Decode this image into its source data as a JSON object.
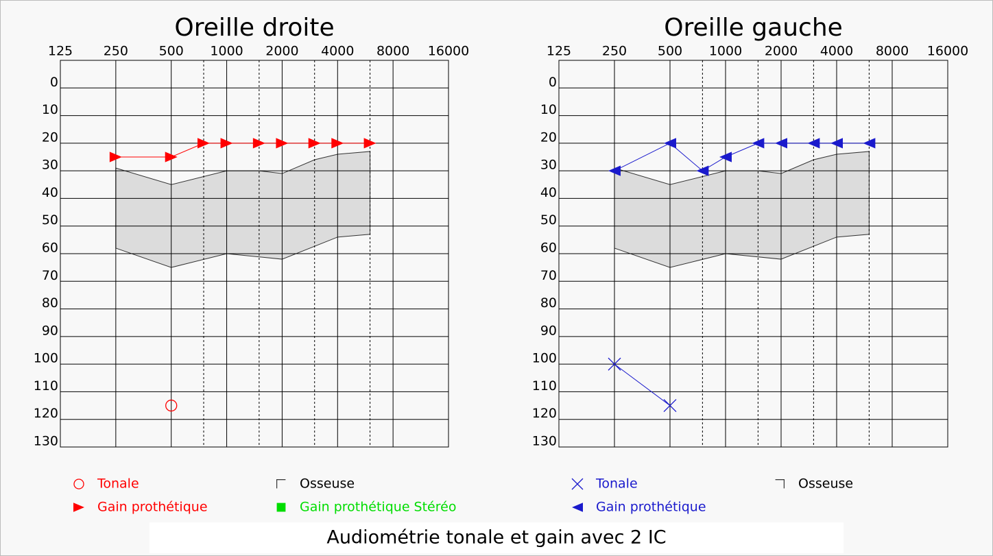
{
  "caption": "Audiométrie tonale et gain avec 2 IC",
  "chart_data": [
    {
      "type": "line",
      "title": "Oreille droite",
      "xscale": "log",
      "y_inverted": true,
      "xlim": [
        125,
        16000
      ],
      "ylim": [
        -10,
        130
      ],
      "xticks": [
        125,
        250,
        500,
        1000,
        2000,
        4000,
        8000,
        16000
      ],
      "minor_xticks": [
        750,
        1500,
        3000,
        6000
      ],
      "yticks": [
        0,
        10,
        20,
        30,
        40,
        50,
        60,
        70,
        80,
        90,
        100,
        110,
        120,
        130
      ],
      "grid": true,
      "band": {
        "color": "#dcdcdc",
        "x_upper": [
          250,
          500,
          1000,
          1500,
          2000,
          3000,
          4000,
          6000
        ],
        "upper": [
          29,
          35,
          30,
          30,
          31,
          26,
          24,
          23
        ],
        "x_lower": [
          250,
          500,
          1000,
          2000,
          4000,
          6000
        ],
        "lower": [
          58,
          65,
          60,
          62,
          54,
          53
        ]
      },
      "series": [
        {
          "name": "Tonale",
          "color": "#ff0000",
          "marker": "circle",
          "x": [
            500
          ],
          "values": [
            115
          ]
        },
        {
          "name": "Osseuse",
          "color": "#000000",
          "marker": "bracket-left",
          "x": [],
          "values": []
        },
        {
          "name": "Gain prothétique",
          "color": "#ff0000",
          "marker": "triangle-right",
          "x": [
            250,
            500,
            750,
            1000,
            1500,
            2000,
            3000,
            4000,
            6000
          ],
          "values": [
            25,
            25,
            20,
            20,
            20,
            20,
            20,
            20,
            20
          ]
        },
        {
          "name": "Gain prothétique Stéréo",
          "color": "#00dd00",
          "marker": "square",
          "x": [],
          "values": []
        }
      ]
    },
    {
      "type": "line",
      "title": "Oreille gauche",
      "xscale": "log",
      "y_inverted": true,
      "xlim": [
        125,
        16000
      ],
      "ylim": [
        -10,
        130
      ],
      "xticks": [
        125,
        250,
        500,
        1000,
        2000,
        4000,
        8000,
        16000
      ],
      "minor_xticks": [
        750,
        1500,
        3000,
        6000
      ],
      "yticks": [
        0,
        10,
        20,
        30,
        40,
        50,
        60,
        70,
        80,
        90,
        100,
        110,
        120,
        130
      ],
      "grid": true,
      "band": {
        "color": "#dcdcdc",
        "x_upper": [
          250,
          500,
          1000,
          1500,
          2000,
          3000,
          4000,
          6000
        ],
        "upper": [
          29,
          35,
          30,
          30,
          31,
          26,
          24,
          23
        ],
        "x_lower": [
          250,
          500,
          1000,
          2000,
          4000,
          6000
        ],
        "lower": [
          58,
          65,
          60,
          62,
          54,
          53
        ]
      },
      "series": [
        {
          "name": "Tonale",
          "color": "#1a1acc",
          "marker": "cross",
          "x": [
            250,
            500
          ],
          "values": [
            100,
            115
          ]
        },
        {
          "name": "Osseuse",
          "color": "#000000",
          "marker": "bracket-right",
          "x": [],
          "values": []
        },
        {
          "name": "Gain prothétique",
          "color": "#1a1acc",
          "marker": "triangle-left",
          "x": [
            250,
            500,
            750,
            1000,
            1500,
            2000,
            3000,
            4000,
            6000
          ],
          "values": [
            30,
            20,
            30,
            25,
            20,
            20,
            20,
            20,
            20
          ]
        }
      ]
    }
  ]
}
